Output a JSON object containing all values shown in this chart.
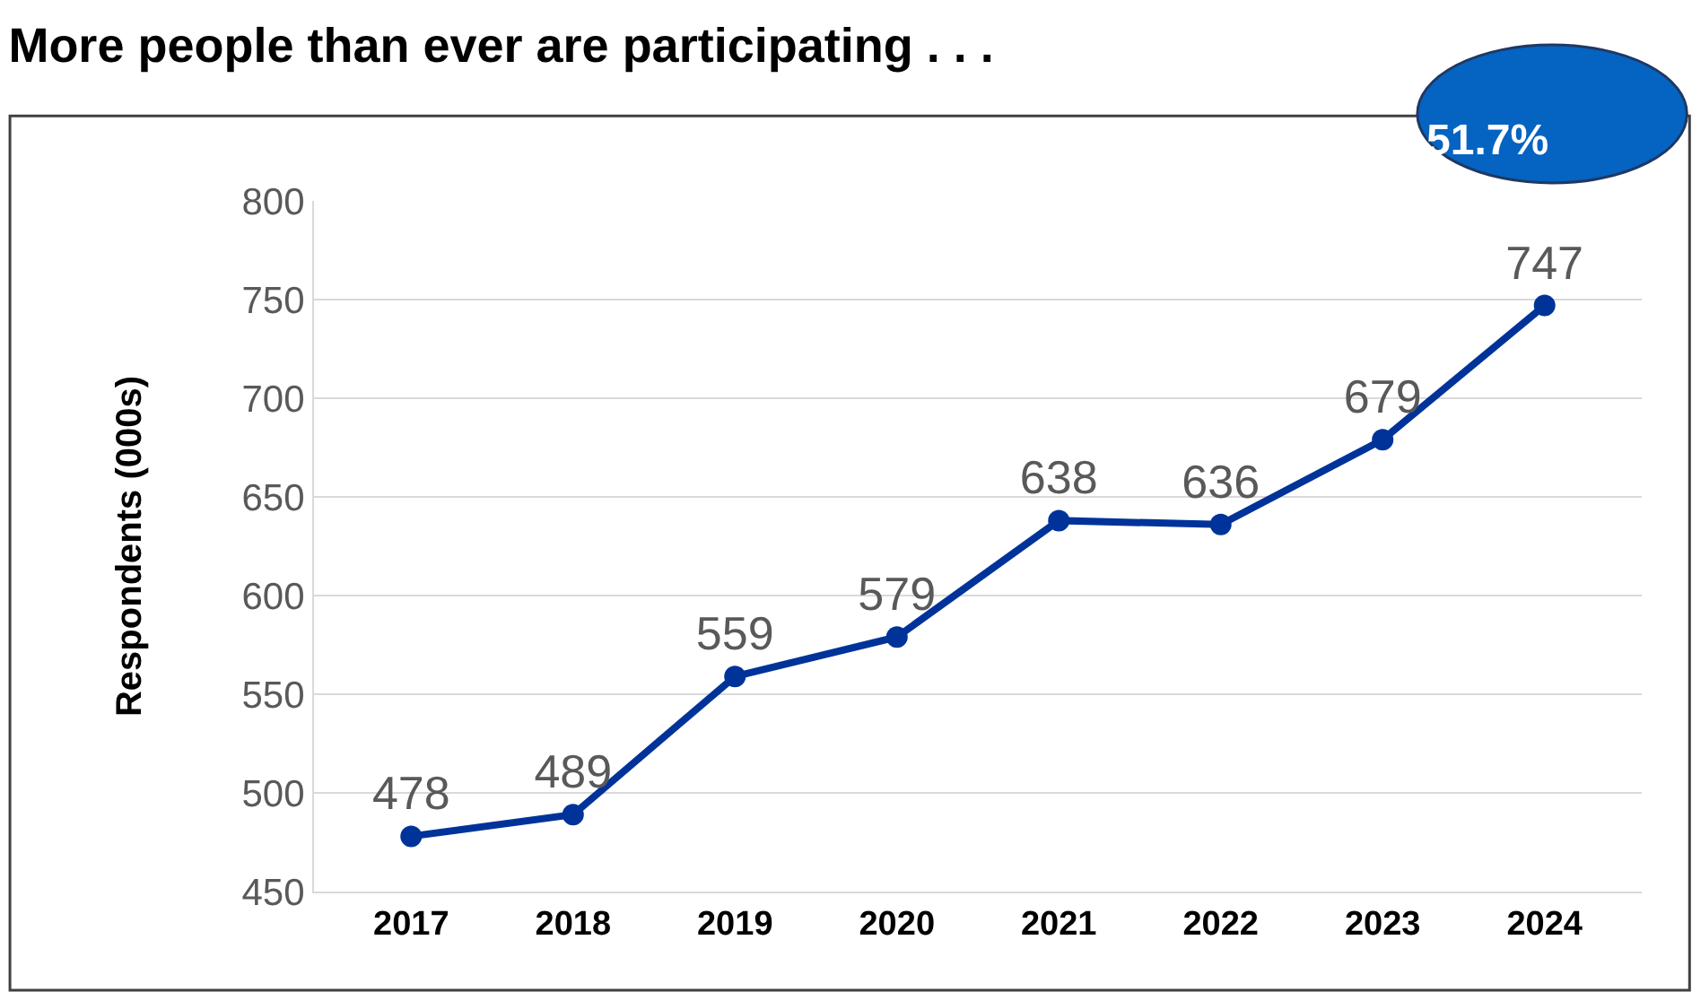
{
  "chart_data": {
    "type": "line",
    "title": "More people than ever are participating . . .",
    "ylabel": "Respondents (000s)",
    "annotations": [
      "51.7%"
    ],
    "categories": [
      "2017",
      "2018",
      "2019",
      "2020",
      "2021",
      "2022",
      "2023",
      "2024"
    ],
    "series": [
      {
        "color": "#003399",
        "values": [
          478,
          489,
          559,
          579,
          638,
          636,
          679,
          747
        ]
      }
    ],
    "ylim": [
      450,
      800
    ],
    "yticks": [
      450,
      500,
      550,
      600,
      650,
      700,
      750,
      800
    ],
    "grid": "y",
    "marker": "circle",
    "data_labels": true
  }
}
